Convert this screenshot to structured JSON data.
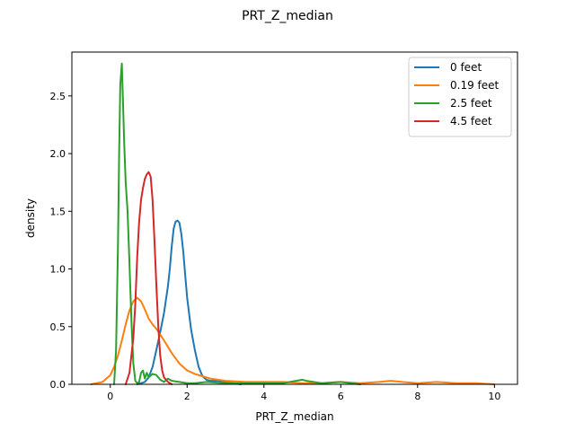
{
  "chart_data": {
    "type": "line",
    "title": "PRT_Z_median",
    "xlabel": "PRT_Z_median",
    "ylabel": "density",
    "xlim": [
      -1.0,
      10.6
    ],
    "ylim": [
      0,
      2.88
    ],
    "xticks": [
      0,
      2,
      4,
      6,
      8,
      10
    ],
    "yticks": [
      0.0,
      0.5,
      1.0,
      1.5,
      2.0,
      2.5
    ],
    "xtick_labels": [
      "0",
      "2",
      "4",
      "6",
      "8",
      "10"
    ],
    "ytick_labels": [
      "0.0",
      "0.5",
      "1.0",
      "1.5",
      "2.0",
      "2.5"
    ],
    "grid": false,
    "legend_position": "top-right",
    "series": [
      {
        "name": "0 feet",
        "color": "#1f77b4",
        "x": [
          0.7,
          0.9,
          1.0,
          1.1,
          1.2,
          1.3,
          1.4,
          1.5,
          1.55,
          1.6,
          1.65,
          1.7,
          1.75,
          1.8,
          1.85,
          1.9,
          1.95,
          2.0,
          2.1,
          2.2,
          2.3,
          2.4,
          2.5,
          2.6,
          2.8,
          3.0,
          3.2,
          3.4
        ],
        "y": [
          0.0,
          0.02,
          0.06,
          0.15,
          0.3,
          0.45,
          0.62,
          0.85,
          1.0,
          1.2,
          1.35,
          1.41,
          1.42,
          1.4,
          1.3,
          1.15,
          0.95,
          0.75,
          0.48,
          0.3,
          0.15,
          0.07,
          0.04,
          0.03,
          0.03,
          0.02,
          0.01,
          0.0
        ]
      },
      {
        "name": "0.19 feet",
        "color": "#ff7f0e",
        "x": [
          -0.5,
          -0.2,
          0.0,
          0.1,
          0.2,
          0.3,
          0.4,
          0.5,
          0.6,
          0.7,
          0.8,
          0.9,
          1.0,
          1.1,
          1.2,
          1.4,
          1.6,
          1.8,
          2.0,
          2.2,
          2.4,
          2.6,
          2.8,
          3.0,
          3.5,
          4.0,
          4.5,
          5.0,
          5.5,
          6.0,
          6.5,
          7.0,
          7.3,
          7.6,
          8.0,
          8.5,
          9.0,
          9.5,
          10.0
        ],
        "y": [
          0.0,
          0.02,
          0.08,
          0.15,
          0.25,
          0.38,
          0.52,
          0.64,
          0.72,
          0.75,
          0.72,
          0.65,
          0.57,
          0.52,
          0.48,
          0.38,
          0.27,
          0.18,
          0.12,
          0.09,
          0.07,
          0.05,
          0.04,
          0.03,
          0.02,
          0.02,
          0.02,
          0.01,
          0.01,
          0.02,
          0.01,
          0.02,
          0.03,
          0.02,
          0.01,
          0.02,
          0.01,
          0.01,
          0.0
        ]
      },
      {
        "name": "2.5 feet",
        "color": "#2ca02c",
        "x": [
          0.1,
          0.15,
          0.2,
          0.23,
          0.26,
          0.3,
          0.33,
          0.36,
          0.4,
          0.45,
          0.5,
          0.55,
          0.6,
          0.65,
          0.7,
          0.75,
          0.8,
          0.85,
          0.9,
          0.95,
          1.0,
          1.1,
          1.2,
          1.3,
          1.4,
          1.5,
          1.6,
          1.8,
          2.0,
          2.2,
          2.5,
          3.0,
          3.5,
          4.0,
          4.5,
          5.0,
          5.1,
          5.5,
          6.0,
          6.5
        ],
        "y": [
          0.0,
          0.3,
          1.2,
          2.0,
          2.6,
          2.78,
          2.45,
          2.1,
          1.75,
          1.5,
          1.05,
          0.55,
          0.18,
          0.03,
          0.01,
          0.02,
          0.1,
          0.12,
          0.05,
          0.1,
          0.06,
          0.09,
          0.08,
          0.04,
          0.02,
          0.05,
          0.03,
          0.02,
          0.01,
          0.01,
          0.02,
          0.01,
          0.01,
          0.01,
          0.01,
          0.04,
          0.03,
          0.01,
          0.02,
          0.0
        ]
      },
      {
        "name": "4.5 feet",
        "color": "#d62728",
        "x": [
          0.4,
          0.5,
          0.6,
          0.65,
          0.7,
          0.75,
          0.8,
          0.85,
          0.9,
          0.95,
          1.0,
          1.05,
          1.1,
          1.15,
          1.2,
          1.25,
          1.3,
          1.35,
          1.4,
          1.5,
          1.6
        ],
        "y": [
          0.0,
          0.1,
          0.4,
          0.7,
          1.1,
          1.4,
          1.6,
          1.7,
          1.78,
          1.82,
          1.84,
          1.8,
          1.6,
          1.25,
          0.85,
          0.5,
          0.25,
          0.12,
          0.06,
          0.02,
          0.0
        ]
      }
    ]
  }
}
